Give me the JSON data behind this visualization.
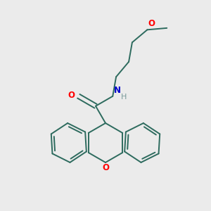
{
  "background_color": "#ebebeb",
  "bond_color": "#2d6b5e",
  "O_color": "#ff0000",
  "N_color": "#0000cc",
  "H_color": "#7a9a9a",
  "line_width": 1.4,
  "figsize": [
    3.0,
    3.0
  ],
  "dpi": 100,
  "xlim": [
    0,
    1
  ],
  "ylim": [
    0,
    1
  ]
}
